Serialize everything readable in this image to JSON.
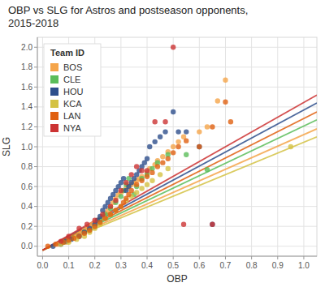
{
  "chart_data": {
    "type": "scatter",
    "title": "OBP vs SLG for Astros and postseason opponents,\n2015-2018",
    "x_label": "OBP",
    "y_label": "SLG",
    "xlim": [
      -0.02,
      1.05
    ],
    "ylim": [
      -0.1,
      2.1
    ],
    "xticks": [
      {
        "value": 0.0,
        "label": "0.0"
      },
      0.1,
      0.2,
      0.3,
      0.4,
      0.5,
      0.6,
      0.7,
      0.8,
      0.9,
      {
        "value": 1.0,
        "label": "1.0"
      }
    ],
    "yticks": [
      {
        "value": 0.0,
        "label": "0.0"
      },
      0.2,
      0.4,
      0.6,
      0.8,
      {
        "value": 1.0,
        "label": "1.0"
      },
      1.2,
      1.4,
      1.6,
      1.8,
      {
        "value": 2.0,
        "label": "2.0"
      }
    ],
    "grid": true,
    "legend": "upper left",
    "legend_title": "Team ID",
    "series": [
      {
        "name": "BOS",
        "color": "#F5A54A",
        "x": [
          0.06,
          0.09,
          0.1,
          0.11,
          0.13,
          0.14,
          0.15,
          0.16,
          0.17,
          0.18,
          0.19,
          0.2,
          0.21,
          0.22,
          0.23,
          0.24,
          0.25,
          0.26,
          0.27,
          0.28,
          0.29,
          0.3,
          0.31,
          0.32,
          0.33,
          0.34,
          0.35,
          0.36,
          0.37,
          0.38,
          0.4,
          0.41,
          0.43,
          0.44,
          0.46,
          0.48,
          0.5,
          0.52,
          0.54,
          0.6,
          0.63,
          0.67,
          0.7
        ],
        "values": [
          0.02,
          0.04,
          0.06,
          0.08,
          0.1,
          0.12,
          0.14,
          0.16,
          0.18,
          0.2,
          0.22,
          0.24,
          0.26,
          0.28,
          0.3,
          0.33,
          0.36,
          0.4,
          0.44,
          0.48,
          0.52,
          0.54,
          0.56,
          0.58,
          0.6,
          0.62,
          0.64,
          0.66,
          0.68,
          0.7,
          0.74,
          0.78,
          0.82,
          0.86,
          0.9,
          0.95,
          1.0,
          1.05,
          1.1,
          1.15,
          1.2,
          1.46,
          1.67
        ]
      },
      {
        "name": "CLE",
        "color": "#5BBD5A",
        "x": [
          0.08,
          0.11,
          0.14,
          0.16,
          0.18,
          0.2,
          0.22,
          0.24,
          0.26,
          0.28,
          0.3,
          0.31,
          0.32,
          0.33,
          0.35,
          0.36,
          0.38,
          0.4,
          0.42,
          0.44,
          0.48,
          0.55,
          0.63
        ],
        "values": [
          0.04,
          0.08,
          0.1,
          0.14,
          0.16,
          0.2,
          0.26,
          0.32,
          0.38,
          0.44,
          0.5,
          0.56,
          0.62,
          0.68,
          0.52,
          0.6,
          0.68,
          0.72,
          0.78,
          0.84,
          0.92,
          0.92,
          0.77
        ]
      },
      {
        "name": "HOU",
        "color": "#2E4F8C",
        "x": [
          0.04,
          0.07,
          0.09,
          0.11,
          0.14,
          0.16,
          0.18,
          0.2,
          0.21,
          0.22,
          0.23,
          0.24,
          0.25,
          0.26,
          0.27,
          0.28,
          0.29,
          0.3,
          0.31,
          0.32,
          0.33,
          0.34,
          0.35,
          0.36,
          0.37,
          0.38,
          0.39,
          0.4,
          0.41,
          0.43,
          0.45,
          0.47,
          0.5,
          0.52,
          0.55,
          0.6,
          0.65
        ],
        "values": [
          0.0,
          0.02,
          0.05,
          0.07,
          0.1,
          0.14,
          0.18,
          0.22,
          0.26,
          0.3,
          0.36,
          0.4,
          0.44,
          0.48,
          0.52,
          0.56,
          0.6,
          0.64,
          0.68,
          0.56,
          0.6,
          0.64,
          0.68,
          0.72,
          0.76,
          0.8,
          0.84,
          0.88,
          1.0,
          1.05,
          1.1,
          1.15,
          1.35,
          1.15,
          1.15,
          1.0,
          0.22
        ]
      },
      {
        "name": "KCA",
        "color": "#D4C244",
        "x": [
          0.07,
          0.1,
          0.13,
          0.16,
          0.18,
          0.2,
          0.22,
          0.24,
          0.26,
          0.28,
          0.3,
          0.32,
          0.34,
          0.36,
          0.38,
          0.4,
          0.42,
          0.45,
          0.48,
          0.95
        ],
        "values": [
          0.02,
          0.04,
          0.07,
          0.1,
          0.14,
          0.18,
          0.22,
          0.28,
          0.32,
          0.36,
          0.4,
          0.46,
          0.5,
          0.54,
          0.58,
          0.62,
          0.66,
          0.72,
          0.78,
          1.0
        ]
      },
      {
        "name": "LAN",
        "color": "#E06010",
        "x": [
          0.02,
          0.05,
          0.08,
          0.1,
          0.12,
          0.14,
          0.16,
          0.18,
          0.2,
          0.22,
          0.24,
          0.26,
          0.28,
          0.3,
          0.31,
          0.32,
          0.33,
          0.34,
          0.36,
          0.38,
          0.4,
          0.42,
          0.44,
          0.46,
          0.48,
          0.5,
          0.52,
          0.55,
          0.6,
          0.65,
          0.7,
          0.72
        ],
        "values": [
          0.0,
          0.02,
          0.04,
          0.06,
          0.08,
          0.1,
          0.13,
          0.16,
          0.2,
          0.24,
          0.28,
          0.32,
          0.36,
          0.4,
          0.44,
          0.48,
          0.52,
          0.56,
          0.62,
          0.66,
          0.7,
          0.74,
          0.8,
          0.84,
          0.88,
          0.94,
          1.0,
          1.06,
          1.0,
          1.2,
          1.45,
          1.25
        ]
      },
      {
        "name": "NYA",
        "color": "#CC3333",
        "x": [
          0.07,
          0.1,
          0.14,
          0.17,
          0.2,
          0.23,
          0.26,
          0.28,
          0.3,
          0.32,
          0.34,
          0.36,
          0.38,
          0.4,
          0.43,
          0.47,
          0.5,
          0.54,
          0.65
        ],
        "values": [
          0.05,
          0.1,
          0.18,
          0.22,
          0.26,
          0.32,
          0.4,
          0.46,
          0.56,
          0.64,
          0.72,
          0.8,
          0.76,
          0.76,
          1.25,
          1.25,
          2.0,
          0.22,
          0.22
        ]
      },
      {
        "name": "BOS",
        "type": "line",
        "color": "#F5A54A",
        "x": [
          0.0,
          1.05
        ],
        "values": [
          -0.04,
          1.18
        ]
      },
      {
        "name": "CLE",
        "type": "line",
        "color": "#5BBD5A",
        "x": [
          0.0,
          1.05
        ],
        "values": [
          -0.04,
          1.27
        ]
      },
      {
        "name": "HOU",
        "type": "line",
        "color": "#2E4F8C",
        "x": [
          0.0,
          1.05
        ],
        "values": [
          -0.04,
          1.44
        ]
      },
      {
        "name": "KCA",
        "type": "line",
        "color": "#D4C244",
        "x": [
          0.0,
          1.05
        ],
        "values": [
          -0.04,
          1.1
        ]
      },
      {
        "name": "LAN",
        "type": "line",
        "color": "#E06010",
        "x": [
          0.0,
          1.05
        ],
        "values": [
          -0.04,
          1.35
        ]
      },
      {
        "name": "NYA",
        "type": "line",
        "color": "#CC3333",
        "x": [
          0.0,
          1.05
        ],
        "values": [
          -0.04,
          1.52
        ]
      }
    ]
  }
}
